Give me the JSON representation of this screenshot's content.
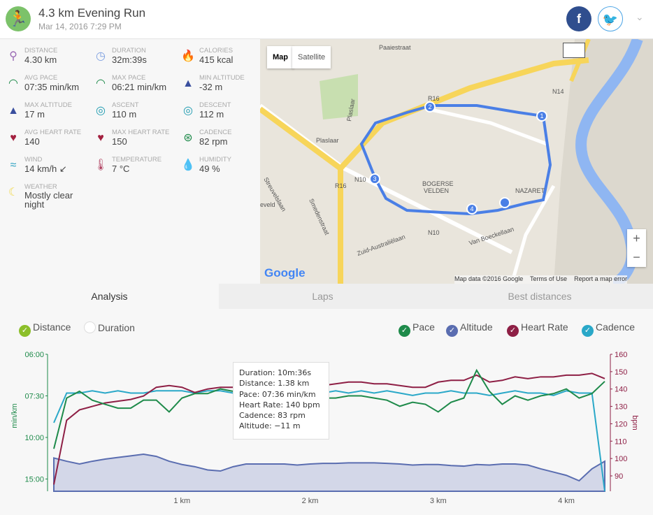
{
  "header": {
    "title": "4.3 km Evening Run",
    "date": "Mar 14, 2016 7:29 PM",
    "facebook": "f",
    "twitter": "🐦",
    "menu": "⌄"
  },
  "stats": [
    {
      "label": "DISTANCE",
      "value": "4.30 km",
      "icon": "distance-icon",
      "glyph": "⚲",
      "color": "#9b6bb5"
    },
    {
      "label": "DURATION",
      "value": "32m:39s",
      "icon": "stopwatch-icon",
      "glyph": "◷",
      "color": "#7b9ee0"
    },
    {
      "label": "CALORIES",
      "value": "415 kcal",
      "icon": "flame-icon",
      "glyph": "🔥",
      "color": "#f2703a"
    },
    {
      "label": "AVG PACE",
      "value": "07:35 min/km",
      "icon": "speedometer-icon",
      "glyph": "◠",
      "color": "#1e8a4a"
    },
    {
      "label": "MAX PACE",
      "value": "06:21 min/km",
      "icon": "speedometer-icon",
      "glyph": "◠",
      "color": "#1e8a4a"
    },
    {
      "label": "MIN ALTITUDE",
      "value": "-32 m",
      "icon": "mountain-icon",
      "glyph": "▲",
      "color": "#3a4f9e"
    },
    {
      "label": "MAX ALTITUDE",
      "value": "17 m",
      "icon": "mountain-icon",
      "glyph": "▲",
      "color": "#3a4f9e"
    },
    {
      "label": "ASCENT",
      "value": "110 m",
      "icon": "ascent-icon",
      "glyph": "◎",
      "color": "#1e9bb0"
    },
    {
      "label": "DESCENT",
      "value": "112 m",
      "icon": "descent-icon",
      "glyph": "◎",
      "color": "#1e9bb0"
    },
    {
      "label": "AVG HEART RATE",
      "value": "140",
      "icon": "heart-icon",
      "glyph": "♥",
      "color": "#a3203f"
    },
    {
      "label": "MAX HEART RATE",
      "value": "150",
      "icon": "heart-icon",
      "glyph": "♥",
      "color": "#a3203f"
    },
    {
      "label": "CADENCE",
      "value": "82 rpm",
      "icon": "cadence-icon",
      "glyph": "⊛",
      "color": "#1e8a4a"
    },
    {
      "label": "WIND",
      "value": "14 km/h ↙",
      "icon": "wind-icon",
      "glyph": "≈",
      "color": "#2aa0c0"
    },
    {
      "label": "TEMPERATURE",
      "value": "7 °C",
      "icon": "thermometer-icon",
      "glyph": "🌡",
      "color": "#b04060"
    },
    {
      "label": "HUMIDITY",
      "value": "49 %",
      "icon": "droplets-icon",
      "glyph": "💧",
      "color": "#8ab0f0"
    },
    {
      "label": "WEATHER",
      "value": "Mostly clear night",
      "icon": "moon-icon",
      "glyph": "☾",
      "color": "#f0d84a"
    }
  ],
  "map": {
    "map_btn": "Map",
    "satellite_btn": "Satellite",
    "zoom_in": "+",
    "zoom_out": "−",
    "google": "Google",
    "attribution": "Map data ©2016 Google",
    "terms": "Terms of Use",
    "report": "Report a map error",
    "labels": [
      "Paaiestraat",
      "R16",
      "N14",
      "Plaslaar",
      "Plaslaar",
      "N10",
      "R16",
      "BOGERSE",
      "VELDEN",
      "NAZARET",
      "Streuvelslaan",
      "Smedenstraat",
      "Zuid-Australiëlaan",
      "N10",
      "Van Boeckellaan",
      "eveld"
    ],
    "markers": [
      "1",
      "2",
      "3",
      "4"
    ],
    "route_color": "#4a7fe6"
  },
  "tabs": [
    "Analysis",
    "Laps",
    "Best distances"
  ],
  "legend": {
    "x_options": [
      {
        "label": "Distance",
        "checked": true
      },
      {
        "label": "Duration",
        "checked": false
      }
    ],
    "series": [
      {
        "label": "Pace",
        "color": "#1e8a4a"
      },
      {
        "label": "Altitude",
        "color": "#5a6db0"
      },
      {
        "label": "Heart Rate",
        "color": "#8e1f45"
      },
      {
        "label": "Cadence",
        "color": "#2aa8c8"
      }
    ]
  },
  "tooltip": [
    "Duration: 10m:36s",
    "Distance: 1.38 km",
    "Pace: 07:36 min/km",
    "Heart Rate: 140 bpm",
    "Cadence: 83 rpm",
    "Altitude: −11 m"
  ],
  "chart_data": {
    "type": "line",
    "xlabel": "km",
    "x_ticks": [
      "1 km",
      "2 km",
      "3 km",
      "4 km"
    ],
    "x_range": [
      0,
      4.3
    ],
    "left_axis": {
      "label": "min/km",
      "ticks": [
        "06:00",
        "07:30",
        "10:00",
        "15:00"
      ],
      "tick_values": [
        6,
        7.5,
        10,
        15
      ]
    },
    "right_axis": {
      "label": "bpm",
      "ticks": [
        "160",
        "150",
        "140",
        "130",
        "120",
        "110",
        "100",
        "90"
      ],
      "range": [
        85,
        160
      ]
    },
    "x": [
      0,
      0.1,
      0.2,
      0.3,
      0.4,
      0.5,
      0.6,
      0.7,
      0.8,
      0.9,
      1.0,
      1.1,
      1.2,
      1.3,
      1.4,
      1.5,
      1.6,
      1.7,
      1.8,
      1.9,
      2.0,
      2.1,
      2.2,
      2.3,
      2.4,
      2.5,
      2.6,
      2.7,
      2.8,
      2.9,
      3.0,
      3.1,
      3.2,
      3.3,
      3.4,
      3.5,
      3.6,
      3.7,
      3.8,
      3.9,
      4.0,
      4.1,
      4.2,
      4.3
    ],
    "series": [
      {
        "name": "Pace",
        "unit": "min/km",
        "values": [
          11.0,
          7.6,
          7.3,
          7.7,
          7.9,
          8.1,
          8.1,
          7.7,
          7.7,
          8.3,
          7.6,
          7.4,
          7.4,
          7.2,
          7.3,
          7.5,
          7.4,
          7.5,
          7.5,
          7.7,
          7.7,
          7.6,
          7.6,
          7.5,
          7.5,
          7.6,
          7.7,
          8.0,
          7.8,
          7.9,
          8.3,
          7.8,
          7.6,
          6.5,
          7.3,
          7.9,
          7.5,
          7.7,
          7.5,
          7.4,
          7.2,
          7.6,
          7.4,
          6.9
        ]
      },
      {
        "name": "Heart Rate",
        "unit": "bpm",
        "values": [
          85,
          122,
          128,
          130,
          132,
          133,
          134,
          136,
          141,
          142,
          141,
          138,
          140,
          141,
          141,
          140,
          139,
          140,
          141,
          141,
          140,
          142,
          143,
          144,
          144,
          143,
          143,
          142,
          141,
          141,
          144,
          145,
          145,
          148,
          144,
          145,
          147,
          146,
          147,
          147,
          148,
          148,
          149,
          146
        ]
      },
      {
        "name": "Cadence",
        "unit": "rpm",
        "range": [
          40,
          100
        ],
        "values": [
          70,
          83,
          83,
          84,
          83,
          84,
          83,
          83,
          84,
          84,
          84,
          83,
          84,
          84,
          83,
          83,
          84,
          83,
          83,
          84,
          84,
          83,
          84,
          83,
          84,
          83,
          84,
          83,
          82,
          83,
          83,
          84,
          83,
          83,
          82,
          83,
          84,
          83,
          83,
          82,
          84,
          83,
          83,
          40
        ]
      },
      {
        "name": "Altitude",
        "unit": "m",
        "range": [
          -32,
          17
        ],
        "values": [
          10,
          4,
          -1,
          4,
          8,
          11,
          14,
          17,
          13,
          4,
          -2,
          -6,
          -12,
          -14,
          -6,
          -1,
          -1,
          -1,
          -1,
          -3,
          -1,
          0,
          0,
          1,
          1,
          1,
          0,
          -1,
          -3,
          -2,
          -2,
          -4,
          -5,
          -2,
          -3,
          -1,
          -1,
          -3,
          -10,
          -16,
          -22,
          -32,
          -10,
          4
        ]
      }
    ]
  }
}
